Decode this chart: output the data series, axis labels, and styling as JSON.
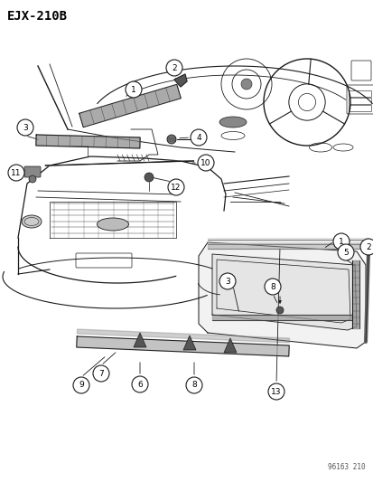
{
  "title": "EJX-210B",
  "background_color": "#ffffff",
  "line_color": "#1a1a1a",
  "text_color": "#000000",
  "bottom_ref": "96163 210",
  "fig_width": 4.14,
  "fig_height": 5.33,
  "dpi": 100
}
